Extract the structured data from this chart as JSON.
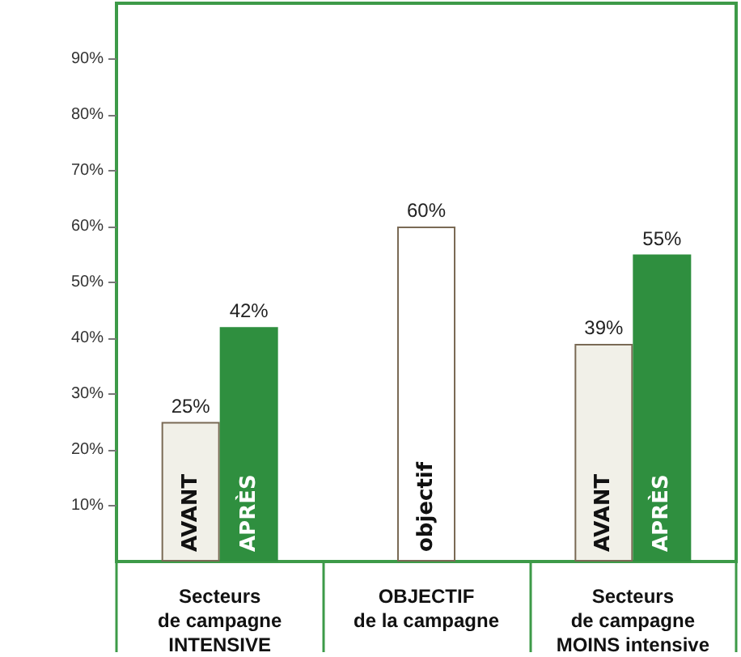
{
  "chart_data": {
    "type": "bar",
    "categories": [
      "Secteurs\nde campagne\nINTENSIVE",
      "OBJECTIF\nde la campagne",
      "Secteurs\nde campagne\nMOINS intensive"
    ],
    "series": [
      {
        "name": "AVANT",
        "color": "#f1f0e8",
        "values": [
          25,
          null,
          39
        ],
        "value_labels": [
          "25%",
          null,
          "39%"
        ]
      },
      {
        "name": "objectif",
        "color": "#ffffff",
        "values": [
          null,
          60,
          null
        ],
        "value_labels": [
          null,
          "60%",
          null
        ]
      },
      {
        "name": "APRÈS",
        "color": "#2f8f3f",
        "values": [
          42,
          null,
          55
        ],
        "value_labels": [
          "42%",
          null,
          "55%"
        ]
      }
    ],
    "ylim": [
      0,
      100
    ],
    "yticks": [
      {
        "value": 10,
        "label": "10%"
      },
      {
        "value": 20,
        "label": "20%"
      },
      {
        "value": 30,
        "label": "30%"
      },
      {
        "value": 40,
        "label": "40%"
      },
      {
        "value": 50,
        "label": "50%"
      },
      {
        "value": 60,
        "label": "60%"
      },
      {
        "value": 70,
        "label": "70%"
      },
      {
        "value": 80,
        "label": "80%"
      },
      {
        "value": 90,
        "label": "90%"
      }
    ],
    "grid": false,
    "legend": false
  }
}
